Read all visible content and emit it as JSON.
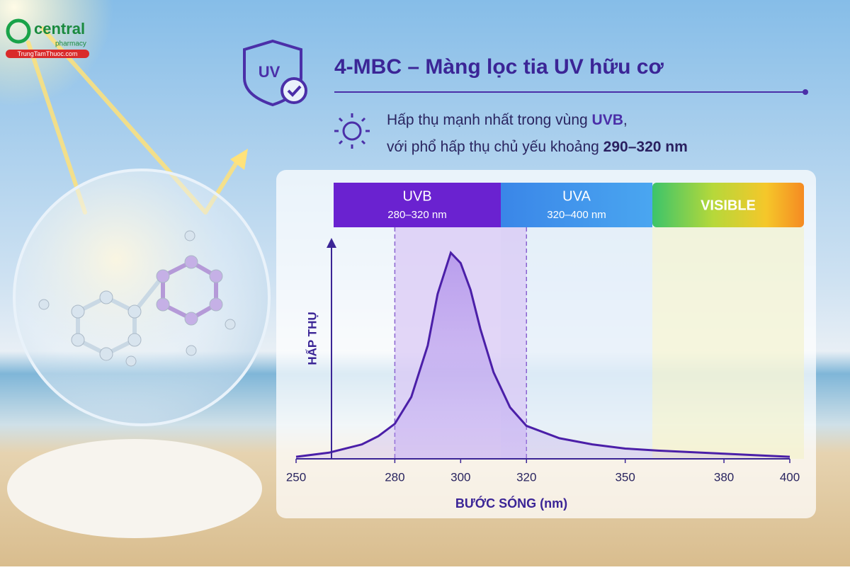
{
  "logo": {
    "brand": "central",
    "sub": "pharmacy",
    "site": "TrungTamThuoc.com"
  },
  "header": {
    "badge": "UV",
    "title": "4-MBC – Màng lọc tia UV hữu cơ",
    "line1": [
      "Hấp thụ mạnh nhất trong vùng ",
      "UVB",
      ","
    ],
    "line2": [
      "với phổ hấp thụ chủ yếu khoảng ",
      "290–320 nm"
    ]
  },
  "chart_data": {
    "type": "line",
    "x_label": "BƯỚC SÓNG (nm)",
    "y_label": "HẤP THỤ",
    "bands": [
      {
        "name": "UVB",
        "range": "280–320 nm"
      },
      {
        "name": "UVA",
        "range": "320–400 nm"
      },
      {
        "name": "VISIBLE"
      }
    ],
    "highlight": [
      280,
      320
    ],
    "x": [
      250,
      260,
      270,
      275,
      280,
      285,
      290,
      293,
      297,
      300,
      303,
      306,
      310,
      315,
      320,
      330,
      340,
      350,
      360,
      380,
      400
    ],
    "series": [
      {
        "color": "#4b1fa8",
        "values": [
          1,
          3,
          7,
          11,
          17,
          30,
          55,
          80,
          100,
          95,
          82,
          63,
          42,
          25,
          16,
          10,
          7,
          5,
          4,
          2.5,
          1
        ]
      }
    ],
    "xlim": [
      250,
      400
    ],
    "ylim": [
      0,
      100
    ],
    "xticks": [
      250,
      280,
      300,
      320,
      350,
      380,
      400
    ]
  }
}
